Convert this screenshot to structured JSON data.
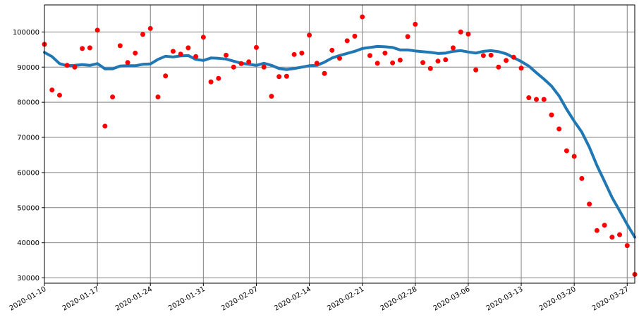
{
  "chart_data": {
    "type": "scatter",
    "title": "",
    "xlabel": "",
    "ylabel": "",
    "xlim": [
      "2020-01-10",
      "2020-03-28"
    ],
    "ylim": [
      28500,
      107700
    ],
    "grid": true,
    "x_ticks": [
      "2020-01-10",
      "2020-01-17",
      "2020-01-24",
      "2020-01-31",
      "2020-02-07",
      "2020-02-14",
      "2020-02-21",
      "2020-02-28",
      "2020-03-06",
      "2020-03-13",
      "2020-03-20",
      "2020-03-27"
    ],
    "y_ticks": [
      30000,
      40000,
      50000,
      60000,
      70000,
      80000,
      90000,
      100000
    ],
    "y_tick_labels": [
      "30000",
      "40000",
      "50000",
      "60000",
      "70000",
      "80000",
      "90000",
      "100000"
    ],
    "series": [
      {
        "kind": "points",
        "color": "#ff0000",
        "x": [
          "2020-01-10",
          "2020-01-11",
          "2020-01-12",
          "2020-01-13",
          "2020-01-14",
          "2020-01-15",
          "2020-01-16",
          "2020-01-17",
          "2020-01-18",
          "2020-01-19",
          "2020-01-20",
          "2020-01-21",
          "2020-01-22",
          "2020-01-23",
          "2020-01-24",
          "2020-01-25",
          "2020-01-26",
          "2020-01-27",
          "2020-01-28",
          "2020-01-29",
          "2020-01-30",
          "2020-01-31",
          "2020-02-01",
          "2020-02-02",
          "2020-02-03",
          "2020-02-04",
          "2020-02-05",
          "2020-02-06",
          "2020-02-07",
          "2020-02-08",
          "2020-02-09",
          "2020-02-10",
          "2020-02-11",
          "2020-02-12",
          "2020-02-13",
          "2020-02-14",
          "2020-02-15",
          "2020-02-16",
          "2020-02-17",
          "2020-02-18",
          "2020-02-19",
          "2020-02-20",
          "2020-02-21",
          "2020-02-22",
          "2020-02-23",
          "2020-02-24",
          "2020-02-25",
          "2020-02-26",
          "2020-02-27",
          "2020-02-28",
          "2020-02-29",
          "2020-03-01",
          "2020-03-02",
          "2020-03-03",
          "2020-03-04",
          "2020-03-05",
          "2020-03-06",
          "2020-03-07",
          "2020-03-08",
          "2020-03-09",
          "2020-03-10",
          "2020-03-11",
          "2020-03-12",
          "2020-03-13",
          "2020-03-14",
          "2020-03-15",
          "2020-03-16",
          "2020-03-17",
          "2020-03-18",
          "2020-03-19",
          "2020-03-20",
          "2020-03-21",
          "2020-03-22",
          "2020-03-23",
          "2020-03-24",
          "2020-03-25",
          "2020-03-26",
          "2020-03-27",
          "2020-03-28"
        ],
        "y": [
          96500,
          83500,
          82000,
          90500,
          90000,
          95300,
          95500,
          100500,
          73200,
          81500,
          96100,
          91300,
          94000,
          99300,
          101000,
          81500,
          87500,
          94500,
          93700,
          95500,
          93000,
          98500,
          85800,
          86800,
          93400,
          90000,
          91000,
          91500,
          95600,
          90000,
          81700,
          87300,
          87400,
          93600,
          94000,
          99100,
          91100,
          88200,
          94800,
          92500,
          97500,
          98800,
          104300,
          93300,
          91100,
          94000,
          91200,
          92000,
          98700,
          102200,
          91300,
          89600,
          91700,
          92100,
          95500,
          100000,
          99400,
          89200,
          93300,
          93400,
          90000,
          91900,
          92800,
          89700,
          81300,
          80800,
          80800,
          76400,
          72400,
          66200,
          64600,
          58300,
          51000,
          43500,
          45000,
          41600,
          42300,
          39200,
          31000
        ]
      },
      {
        "kind": "line",
        "color": "#1f77b4",
        "x": [
          "2020-01-10",
          "2020-01-11",
          "2020-01-12",
          "2020-01-13",
          "2020-01-14",
          "2020-01-15",
          "2020-01-16",
          "2020-01-17",
          "2020-01-18",
          "2020-01-19",
          "2020-01-20",
          "2020-01-21",
          "2020-01-22",
          "2020-01-23",
          "2020-01-24",
          "2020-01-25",
          "2020-01-26",
          "2020-01-27",
          "2020-01-28",
          "2020-01-29",
          "2020-01-30",
          "2020-01-31",
          "2020-02-01",
          "2020-02-02",
          "2020-02-03",
          "2020-02-04",
          "2020-02-05",
          "2020-02-06",
          "2020-02-07",
          "2020-02-08",
          "2020-02-09",
          "2020-02-10",
          "2020-02-11",
          "2020-02-12",
          "2020-02-13",
          "2020-02-14",
          "2020-02-15",
          "2020-02-16",
          "2020-02-17",
          "2020-02-18",
          "2020-02-19",
          "2020-02-20",
          "2020-02-21",
          "2020-02-22",
          "2020-02-23",
          "2020-02-24",
          "2020-02-25",
          "2020-02-26",
          "2020-02-27",
          "2020-02-28",
          "2020-02-29",
          "2020-03-01",
          "2020-03-02",
          "2020-03-03",
          "2020-03-04",
          "2020-03-05",
          "2020-03-06",
          "2020-03-07",
          "2020-03-08",
          "2020-03-09",
          "2020-03-10",
          "2020-03-11",
          "2020-03-12",
          "2020-03-13",
          "2020-03-14",
          "2020-03-15",
          "2020-03-16",
          "2020-03-17",
          "2020-03-18",
          "2020-03-19",
          "2020-03-20",
          "2020-03-21",
          "2020-03-22",
          "2020-03-23",
          "2020-03-24",
          "2020-03-25",
          "2020-03-26",
          "2020-03-27",
          "2020-03-28"
        ],
        "y": [
          94200,
          93000,
          91000,
          90400,
          90500,
          90700,
          90500,
          91000,
          89500,
          89500,
          90300,
          90400,
          90400,
          90800,
          90900,
          92200,
          93100,
          92900,
          93200,
          93300,
          92200,
          91900,
          92600,
          92500,
          92300,
          91700,
          91100,
          90800,
          90500,
          91100,
          90500,
          89600,
          89300,
          89600,
          90000,
          90400,
          90500,
          91400,
          92600,
          93300,
          93900,
          94500,
          95300,
          95600,
          95900,
          95800,
          95600,
          94900,
          94900,
          94600,
          94400,
          94200,
          93900,
          94000,
          94500,
          94700,
          94300,
          94000,
          94500,
          94700,
          94400,
          93800,
          92700,
          91600,
          90300,
          88400,
          86600,
          84600,
          81800,
          78000,
          74600,
          71500,
          67200,
          62000,
          57500,
          52900,
          49100,
          45200,
          41600
        ]
      }
    ]
  }
}
